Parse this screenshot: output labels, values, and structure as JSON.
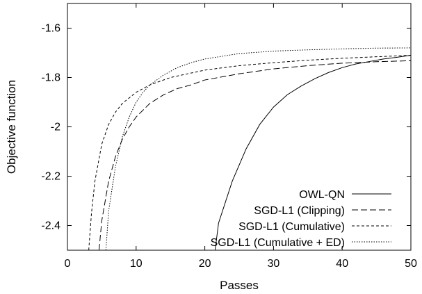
{
  "chart_data": {
    "type": "line",
    "title": "",
    "xlabel": "Passes",
    "ylabel": "Objective function",
    "xlim": [
      0,
      50
    ],
    "ylim": [
      -2.5,
      -1.5
    ],
    "xticks": [
      0,
      10,
      20,
      30,
      40,
      50
    ],
    "yticks": [
      -2.4,
      -2.2,
      -2,
      -1.8,
      -1.6
    ],
    "ytick_labels": [
      "-2.4",
      "-2.2",
      "-2",
      "-1.8",
      "-1.6"
    ],
    "grid": false,
    "legend_position": "bottom-right",
    "series": [
      {
        "name": "OWL-QN",
        "dash": "solid",
        "x": [
          21.5,
          22,
          24,
          26,
          28,
          30,
          32,
          34,
          36,
          38,
          40,
          42,
          44,
          46,
          48,
          50
        ],
        "y": [
          -2.5,
          -2.39,
          -2.22,
          -2.09,
          -1.99,
          -1.92,
          -1.87,
          -1.835,
          -1.805,
          -1.78,
          -1.76,
          -1.745,
          -1.735,
          -1.725,
          -1.718,
          -1.71
        ]
      },
      {
        "name": "SGD-L1 (Clipping)",
        "dash": "dashed",
        "x": [
          4.6,
          5,
          6,
          7,
          8,
          9,
          10,
          12,
          14,
          16,
          18,
          20,
          22,
          25,
          30,
          35,
          40,
          45,
          50
        ],
        "y": [
          -2.5,
          -2.38,
          -2.22,
          -2.12,
          -2.05,
          -2.0,
          -1.96,
          -1.905,
          -1.87,
          -1.845,
          -1.83,
          -1.81,
          -1.8,
          -1.785,
          -1.765,
          -1.752,
          -1.742,
          -1.736,
          -1.732
        ]
      },
      {
        "name": "SGD-L1 (Cumulative)",
        "dash": "short-dashed",
        "x": [
          3.1,
          3.5,
          4,
          5,
          6,
          7,
          8,
          10,
          12,
          15,
          20,
          25,
          30,
          35,
          40,
          45,
          50
        ],
        "y": [
          -2.5,
          -2.35,
          -2.22,
          -2.07,
          -1.99,
          -1.94,
          -1.905,
          -1.86,
          -1.83,
          -1.8,
          -1.77,
          -1.752,
          -1.74,
          -1.73,
          -1.722,
          -1.716,
          -1.71
        ]
      },
      {
        "name": "SGD-L1 (Cumulative + ED)",
        "dash": "dotted",
        "x": [
          5.6,
          6,
          7,
          8,
          9,
          10,
          11,
          12,
          14,
          16,
          18,
          20,
          25,
          30,
          35,
          40,
          45,
          50
        ],
        "y": [
          -2.5,
          -2.34,
          -2.16,
          -2.04,
          -1.96,
          -1.9,
          -1.86,
          -1.83,
          -1.79,
          -1.76,
          -1.74,
          -1.725,
          -1.703,
          -1.693,
          -1.688,
          -1.684,
          -1.681,
          -1.68
        ]
      }
    ]
  }
}
